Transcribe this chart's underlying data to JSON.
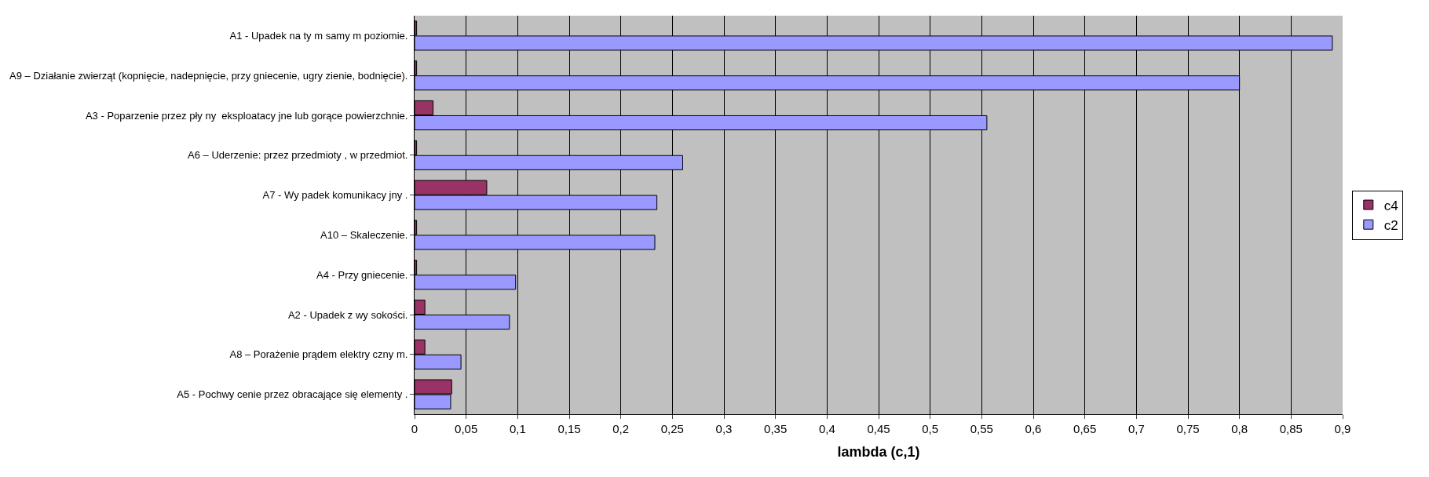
{
  "chart_data": {
    "type": "bar",
    "orientation": "horizontal",
    "xlabel": "lambda (c,1)",
    "categories": [
      "A1 - Upadek na ty m samy m poziomie.",
      "A9 – Działanie zwierząt (kopnięcie, nadepnięcie, przy gniecenie, ugry zienie, bodnięcie).",
      "A3 - Poparzenie przez pły ny  eksploatacy jne lub gorące powierzchnie.",
      "A6 – Uderzenie: przez przedmioty , w przedmiot.",
      "A7 - Wy padek komunikacy jny .",
      "A10 – Skaleczenie.",
      "A4 - Przy gniecenie.",
      "A2 - Upadek z wy sokości.",
      "A8 – Porażenie prądem elektry czny m.",
      "A5 - Pochwy cenie przez obracające się elementy ."
    ],
    "series": [
      {
        "name": "c4",
        "color": "#993366",
        "values": [
          0.002,
          0.002,
          0.018,
          0.002,
          0.07,
          0.002,
          0.002,
          0.01,
          0.01,
          0.036
        ]
      },
      {
        "name": "c2",
        "color": "#9999ff",
        "values": [
          0.89,
          0.8,
          0.555,
          0.26,
          0.235,
          0.233,
          0.098,
          0.092,
          0.045,
          0.035
        ]
      }
    ],
    "xlim": [
      0,
      0.9
    ],
    "xticks": [
      0,
      {
        "value": 0.05,
        "label": "0,05"
      },
      {
        "value": 0.1,
        "label": "0,1"
      },
      {
        "value": 0.15,
        "label": "0,15"
      },
      {
        "value": 0.2,
        "label": "0,2"
      },
      {
        "value": 0.25,
        "label": "0,25"
      },
      {
        "value": 0.3,
        "label": "0,3"
      },
      {
        "value": 0.35,
        "label": "0,35"
      },
      {
        "value": 0.4,
        "label": "0,4"
      },
      {
        "value": 0.45,
        "label": "0,45"
      },
      {
        "value": 0.5,
        "label": "0,5"
      },
      {
        "value": 0.55,
        "label": "0,55"
      },
      {
        "value": 0.6,
        "label": "0,6"
      },
      {
        "value": 0.65,
        "label": "0,65"
      },
      {
        "value": 0.7,
        "label": "0,7"
      },
      {
        "value": 0.75,
        "label": "0,75"
      },
      {
        "value": 0.8,
        "label": "0,8"
      },
      {
        "value": 0.85,
        "label": "0,85"
      },
      {
        "value": 0.9,
        "label": "0,9"
      }
    ],
    "grid": "x",
    "legend": "right"
  }
}
